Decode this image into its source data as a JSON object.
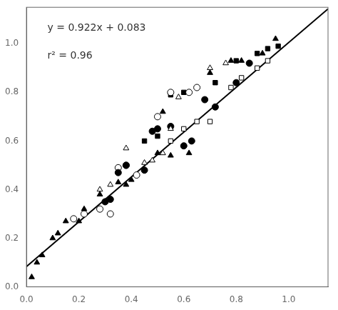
{
  "chart_data": {
    "type": "scatter",
    "xlim": [
      0,
      1.15
    ],
    "ylim": [
      0,
      1.15
    ],
    "xticks": [
      {
        "value": 0,
        "label": "0.0"
      },
      0.2,
      0.4,
      0.6,
      0.8,
      {
        "value": 1,
        "label": "1.0"
      }
    ],
    "yticks": [
      {
        "value": 0,
        "label": "0.0"
      },
      0.2,
      0.4,
      0.6,
      0.8,
      {
        "value": 1,
        "label": "1.0"
      }
    ],
    "grid": false,
    "annotations": [
      {
        "text": "y = 0.922x + 0.083",
        "x": 0.08,
        "y": 1.085
      },
      {
        "text": "r² = 0.96",
        "x": 0.08,
        "y": 0.97
      }
    ],
    "series": [
      {
        "type": "line",
        "color": "#000000",
        "x": [
          0,
          1.15
        ],
        "values": [
          0.083,
          1.1433
        ]
      },
      {
        "marker": "triangle",
        "color": "#000000",
        "x": [
          0.02,
          0.04,
          0.06,
          0.1,
          0.12,
          0.15,
          0.2,
          0.22,
          0.28,
          0.3,
          0.35,
          0.38,
          0.4,
          0.5,
          0.52,
          0.55,
          0.62,
          0.7,
          0.78,
          0.82,
          0.9,
          0.95
        ],
        "values": [
          0.04,
          0.1,
          0.13,
          0.2,
          0.22,
          0.27,
          0.27,
          0.32,
          0.38,
          0.35,
          0.43,
          0.42,
          0.44,
          0.55,
          0.72,
          0.54,
          0.55,
          0.88,
          0.93,
          0.93,
          0.96,
          1.02
        ]
      },
      {
        "marker": "triangle",
        "color": "#ffffff",
        "x": [
          0.28,
          0.32,
          0.38,
          0.45,
          0.48,
          0.52,
          0.55,
          0.58,
          0.7,
          0.76
        ],
        "values": [
          0.4,
          0.42,
          0.57,
          0.51,
          0.52,
          0.55,
          0.65,
          0.78,
          0.9,
          0.92
        ]
      },
      {
        "marker": "circle",
        "color": "#000000",
        "x": [
          0.3,
          0.32,
          0.35,
          0.38,
          0.45,
          0.48,
          0.5,
          0.55,
          0.6,
          0.63,
          0.68,
          0.72,
          0.8,
          0.85
        ],
        "values": [
          0.35,
          0.36,
          0.47,
          0.5,
          0.48,
          0.64,
          0.65,
          0.66,
          0.58,
          0.6,
          0.77,
          0.74,
          0.84,
          0.92
        ]
      },
      {
        "marker": "circle",
        "color": "#ffffff",
        "x": [
          0.18,
          0.22,
          0.28,
          0.32,
          0.35,
          0.38,
          0.42,
          0.5,
          0.55,
          0.62,
          0.65
        ],
        "values": [
          0.28,
          0.3,
          0.32,
          0.3,
          0.49,
          0.5,
          0.46,
          0.7,
          0.8,
          0.8,
          0.82
        ]
      },
      {
        "marker": "square",
        "color": "#000000",
        "x": [
          0.45,
          0.5,
          0.55,
          0.6,
          0.72,
          0.8,
          0.88,
          0.92,
          0.96
        ],
        "values": [
          0.6,
          0.62,
          0.79,
          0.8,
          0.84,
          0.93,
          0.96,
          0.98,
          0.99
        ]
      },
      {
        "marker": "square",
        "color": "#ffffff",
        "x": [
          0.55,
          0.6,
          0.65,
          0.7,
          0.78,
          0.82,
          0.88,
          0.92
        ],
        "values": [
          0.6,
          0.65,
          0.68,
          0.68,
          0.82,
          0.86,
          0.9,
          0.93
        ]
      }
    ]
  }
}
